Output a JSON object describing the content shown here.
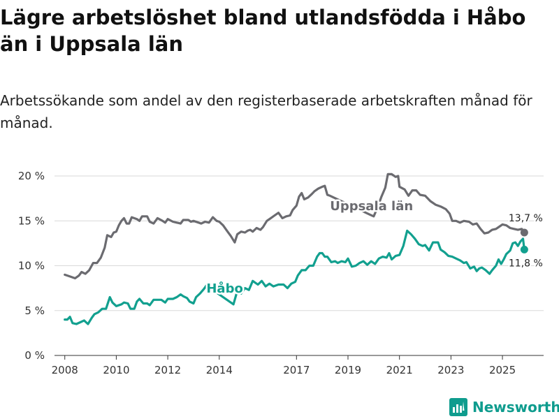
{
  "title": "Lägre arbetslöshet bland utlandsfödda i Håbo än i Uppsala län",
  "subtitle": "Arbetssökande som andel av den registerbaserade arbetskraften månad för månad.",
  "brand": "Newsworthy",
  "colors": {
    "uppsala": "#6b6b70",
    "habo": "#12a08f",
    "grid": "#d9d9d9",
    "axis": "#333333",
    "brand": "#0f9c8e"
  },
  "chart_data": {
    "type": "line",
    "title": "Lägre arbetslöshet bland utlandsfödda i Håbo än i Uppsala län",
    "xlabel": "",
    "ylabel": "",
    "xlim": [
      2007.6,
      2026.6
    ],
    "ylim": [
      0,
      20
    ],
    "y_ticks": [
      {
        "value": 0,
        "label": "0 %"
      },
      {
        "value": 5,
        "label": "5 %"
      },
      {
        "value": 10,
        "label": "10 %"
      },
      {
        "value": 15,
        "label": "15 %"
      },
      {
        "value": 20,
        "label": "20 %"
      }
    ],
    "x_ticks": [
      {
        "value": 2008,
        "label": "2008"
      },
      {
        "value": 2010,
        "label": "2010"
      },
      {
        "value": 2012,
        "label": "2012"
      },
      {
        "value": 2014,
        "label": "2014"
      },
      {
        "value": 2017,
        "label": "2017"
      },
      {
        "value": 2019,
        "label": "2019"
      },
      {
        "value": 2021,
        "label": "2021"
      },
      {
        "value": 2023,
        "label": "2023"
      },
      {
        "value": 2025,
        "label": "2025"
      }
    ],
    "series": [
      {
        "name": "Uppsala län",
        "key": "uppsala",
        "end_label": "13,7 %",
        "points": [
          [
            2008.0,
            9.0
          ],
          [
            2008.2,
            8.8
          ],
          [
            2008.4,
            8.6
          ],
          [
            2008.55,
            8.9
          ],
          [
            2008.65,
            9.3
          ],
          [
            2008.8,
            9.1
          ],
          [
            2008.95,
            9.5
          ],
          [
            2009.1,
            10.3
          ],
          [
            2009.25,
            10.3
          ],
          [
            2009.4,
            10.9
          ],
          [
            2009.55,
            12.0
          ],
          [
            2009.65,
            13.4
          ],
          [
            2009.8,
            13.2
          ],
          [
            2009.9,
            13.7
          ],
          [
            2010.0,
            13.8
          ],
          [
            2010.1,
            14.5
          ],
          [
            2010.2,
            15.0
          ],
          [
            2010.3,
            15.3
          ],
          [
            2010.4,
            14.7
          ],
          [
            2010.5,
            14.7
          ],
          [
            2010.6,
            15.4
          ],
          [
            2010.8,
            15.2
          ],
          [
            2010.9,
            15.0
          ],
          [
            2011.0,
            15.5
          ],
          [
            2011.2,
            15.5
          ],
          [
            2011.3,
            14.9
          ],
          [
            2011.45,
            14.7
          ],
          [
            2011.6,
            15.3
          ],
          [
            2011.8,
            15.0
          ],
          [
            2011.9,
            14.8
          ],
          [
            2012.0,
            15.2
          ],
          [
            2012.2,
            14.9
          ],
          [
            2012.35,
            14.8
          ],
          [
            2012.5,
            14.7
          ],
          [
            2012.6,
            15.1
          ],
          [
            2012.8,
            15.1
          ],
          [
            2012.9,
            14.9
          ],
          [
            2013.0,
            15.0
          ],
          [
            2013.2,
            14.8
          ],
          [
            2013.3,
            14.7
          ],
          [
            2013.45,
            14.9
          ],
          [
            2013.6,
            14.8
          ],
          [
            2013.75,
            15.4
          ],
          [
            2013.9,
            15.0
          ],
          [
            2014.0,
            14.9
          ],
          [
            2014.15,
            14.5
          ],
          [
            2014.3,
            13.9
          ],
          [
            2014.45,
            13.3
          ],
          [
            2014.6,
            12.6
          ],
          [
            2014.7,
            13.5
          ],
          [
            2014.85,
            13.8
          ],
          [
            2015.0,
            13.7
          ],
          [
            2015.1,
            13.9
          ],
          [
            2015.2,
            14.0
          ],
          [
            2015.3,
            13.8
          ],
          [
            2015.45,
            14.2
          ],
          [
            2015.6,
            14.0
          ],
          [
            2015.7,
            14.3
          ],
          [
            2015.85,
            15.0
          ],
          [
            2016.0,
            15.3
          ],
          [
            2016.15,
            15.6
          ],
          [
            2016.3,
            15.9
          ],
          [
            2016.45,
            15.3
          ],
          [
            2016.6,
            15.5
          ],
          [
            2016.75,
            15.6
          ],
          [
            2016.85,
            16.2
          ],
          [
            2017.0,
            16.7
          ],
          [
            2017.1,
            17.7
          ],
          [
            2017.2,
            18.1
          ],
          [
            2017.3,
            17.4
          ],
          [
            2017.45,
            17.6
          ],
          [
            2017.6,
            18.0
          ],
          [
            2017.7,
            18.3
          ],
          [
            2017.85,
            18.6
          ],
          [
            2018.0,
            18.8
          ],
          [
            2018.1,
            18.9
          ],
          [
            2018.2,
            17.9
          ],
          [
            2018.3,
            17.8
          ],
          [
            2019.85,
            15.7
          ],
          [
            2020.0,
            15.5
          ],
          [
            2020.15,
            16.5
          ],
          [
            2020.3,
            17.7
          ],
          [
            2020.45,
            18.7
          ],
          [
            2020.55,
            20.2
          ],
          [
            2020.7,
            20.2
          ],
          [
            2020.85,
            19.9
          ],
          [
            2020.95,
            20.0
          ],
          [
            2021.0,
            18.8
          ],
          [
            2021.2,
            18.5
          ],
          [
            2021.35,
            17.8
          ],
          [
            2021.5,
            18.4
          ],
          [
            2021.65,
            18.4
          ],
          [
            2021.8,
            17.9
          ],
          [
            2022.0,
            17.8
          ],
          [
            2022.2,
            17.2
          ],
          [
            2022.4,
            16.8
          ],
          [
            2022.6,
            16.6
          ],
          [
            2022.8,
            16.3
          ],
          [
            2022.95,
            15.8
          ],
          [
            2023.05,
            15.0
          ],
          [
            2023.2,
            15.0
          ],
          [
            2023.35,
            14.8
          ],
          [
            2023.5,
            15.0
          ],
          [
            2023.7,
            14.9
          ],
          [
            2023.85,
            14.6
          ],
          [
            2024.0,
            14.7
          ],
          [
            2024.15,
            14.1
          ],
          [
            2024.3,
            13.6
          ],
          [
            2024.45,
            13.7
          ],
          [
            2024.6,
            14.0
          ],
          [
            2024.75,
            14.1
          ],
          [
            2024.9,
            14.4
          ],
          [
            2025.0,
            14.6
          ],
          [
            2025.15,
            14.5
          ],
          [
            2025.3,
            14.2
          ],
          [
            2025.45,
            14.1
          ],
          [
            2025.6,
            14.0
          ],
          [
            2025.75,
            14.1
          ],
          [
            2025.85,
            13.7
          ]
        ]
      },
      {
        "name": "Håbo",
        "key": "habo",
        "end_label": "11,8 %",
        "points": [
          [
            2008.0,
            4.0
          ],
          [
            2008.1,
            4.0
          ],
          [
            2008.2,
            4.3
          ],
          [
            2008.3,
            3.6
          ],
          [
            2008.45,
            3.5
          ],
          [
            2008.6,
            3.7
          ],
          [
            2008.75,
            3.9
          ],
          [
            2008.9,
            3.5
          ],
          [
            2009.05,
            4.2
          ],
          [
            2009.15,
            4.6
          ],
          [
            2009.3,
            4.8
          ],
          [
            2009.45,
            5.2
          ],
          [
            2009.6,
            5.2
          ],
          [
            2009.75,
            6.5
          ],
          [
            2009.85,
            5.9
          ],
          [
            2010.0,
            5.5
          ],
          [
            2010.2,
            5.7
          ],
          [
            2010.3,
            5.9
          ],
          [
            2010.45,
            5.8
          ],
          [
            2010.55,
            5.2
          ],
          [
            2010.7,
            5.2
          ],
          [
            2010.8,
            6.0
          ],
          [
            2010.9,
            6.3
          ],
          [
            2011.05,
            5.8
          ],
          [
            2011.2,
            5.8
          ],
          [
            2011.3,
            5.6
          ],
          [
            2011.45,
            6.2
          ],
          [
            2011.6,
            6.2
          ],
          [
            2011.75,
            6.2
          ],
          [
            2011.9,
            5.9
          ],
          [
            2012.0,
            6.3
          ],
          [
            2012.2,
            6.3
          ],
          [
            2012.35,
            6.5
          ],
          [
            2012.5,
            6.8
          ],
          [
            2012.6,
            6.6
          ],
          [
            2012.75,
            6.4
          ],
          [
            2012.85,
            6.0
          ],
          [
            2013.0,
            5.8
          ],
          [
            2013.1,
            6.5
          ],
          [
            2013.25,
            6.9
          ],
          [
            2013.4,
            7.4
          ],
          [
            2013.5,
            7.8
          ],
          [
            2014.55,
            5.7
          ],
          [
            2014.7,
            7.2
          ],
          [
            2014.85,
            6.9
          ],
          [
            2015.0,
            7.5
          ],
          [
            2015.15,
            7.3
          ],
          [
            2015.3,
            8.3
          ],
          [
            2015.5,
            7.9
          ],
          [
            2015.65,
            8.3
          ],
          [
            2015.8,
            7.7
          ],
          [
            2015.95,
            8.0
          ],
          [
            2016.1,
            7.7
          ],
          [
            2016.3,
            7.9
          ],
          [
            2016.5,
            7.9
          ],
          [
            2016.65,
            7.5
          ],
          [
            2016.8,
            8.0
          ],
          [
            2016.95,
            8.2
          ],
          [
            2017.05,
            8.9
          ],
          [
            2017.2,
            9.5
          ],
          [
            2017.35,
            9.5
          ],
          [
            2017.5,
            10.0
          ],
          [
            2017.65,
            10.0
          ],
          [
            2017.8,
            11.0
          ],
          [
            2017.9,
            11.4
          ],
          [
            2018.0,
            11.4
          ],
          [
            2018.1,
            11.0
          ],
          [
            2018.2,
            11.0
          ],
          [
            2018.35,
            10.4
          ],
          [
            2018.5,
            10.5
          ],
          [
            2018.6,
            10.3
          ],
          [
            2018.75,
            10.5
          ],
          [
            2018.9,
            10.4
          ],
          [
            2019.0,
            10.8
          ],
          [
            2019.15,
            9.9
          ],
          [
            2019.3,
            10.0
          ],
          [
            2019.45,
            10.3
          ],
          [
            2019.6,
            10.5
          ],
          [
            2019.75,
            10.1
          ],
          [
            2019.9,
            10.5
          ],
          [
            2020.05,
            10.2
          ],
          [
            2020.2,
            10.8
          ],
          [
            2020.35,
            11.0
          ],
          [
            2020.5,
            10.9
          ],
          [
            2020.6,
            11.4
          ],
          [
            2020.7,
            10.7
          ],
          [
            2020.85,
            11.1
          ],
          [
            2021.0,
            11.2
          ],
          [
            2021.15,
            12.2
          ],
          [
            2021.3,
            13.9
          ],
          [
            2021.45,
            13.5
          ],
          [
            2021.6,
            13.0
          ],
          [
            2021.75,
            12.4
          ],
          [
            2021.9,
            12.2
          ],
          [
            2022.0,
            12.3
          ],
          [
            2022.15,
            11.7
          ],
          [
            2022.3,
            12.6
          ],
          [
            2022.5,
            12.6
          ],
          [
            2022.6,
            11.8
          ],
          [
            2022.75,
            11.5
          ],
          [
            2022.9,
            11.1
          ],
          [
            2023.05,
            11.0
          ],
          [
            2023.2,
            10.8
          ],
          [
            2023.35,
            10.6
          ],
          [
            2023.5,
            10.3
          ],
          [
            2023.6,
            10.4
          ],
          [
            2023.75,
            9.7
          ],
          [
            2023.9,
            9.9
          ],
          [
            2024.0,
            9.4
          ],
          [
            2024.1,
            9.7
          ],
          [
            2024.2,
            9.8
          ],
          [
            2024.35,
            9.5
          ],
          [
            2024.5,
            9.1
          ],
          [
            2024.6,
            9.5
          ],
          [
            2024.75,
            10.0
          ],
          [
            2024.85,
            10.7
          ],
          [
            2024.95,
            10.2
          ],
          [
            2025.05,
            10.7
          ],
          [
            2025.15,
            11.3
          ],
          [
            2025.3,
            11.7
          ],
          [
            2025.4,
            12.5
          ],
          [
            2025.5,
            12.6
          ],
          [
            2025.6,
            12.2
          ],
          [
            2025.7,
            12.7
          ],
          [
            2025.8,
            13.0
          ],
          [
            2025.85,
            11.8
          ]
        ]
      }
    ]
  }
}
